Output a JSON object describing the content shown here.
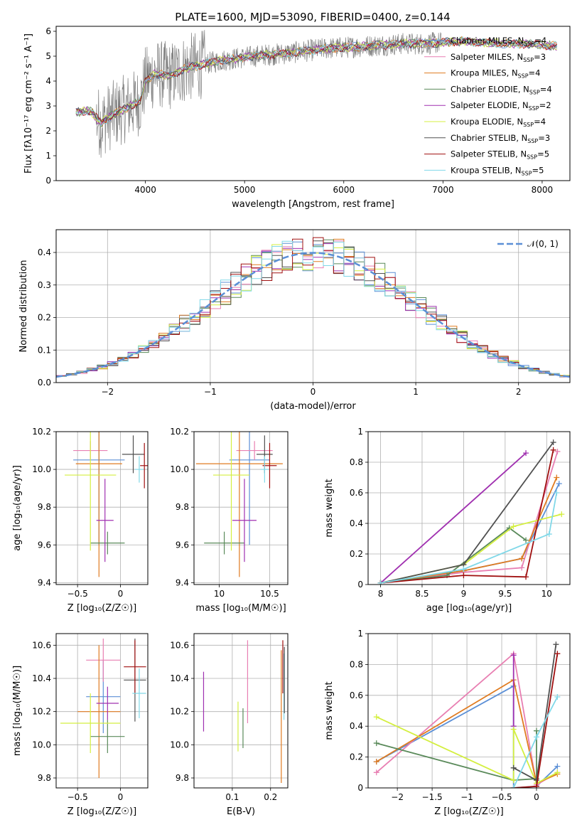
{
  "figure": {
    "title": "PLATE=1600, MJD=53090, FIBERID=0400, z=0.144"
  },
  "legend_spectrum": [
    {
      "name": "Chabrier MILES",
      "nssp": "4",
      "color": "#5b8fd6"
    },
    {
      "name": "Salpeter MILES",
      "nssp": "3",
      "color": "#e87fb2"
    },
    {
      "name": "Kroupa MILES",
      "nssp": "4",
      "color": "#e07b20"
    },
    {
      "name": "Chabrier ELODIE",
      "nssp": "4",
      "color": "#5a8a5a"
    },
    {
      "name": "Salpeter ELODIE",
      "nssp": "2",
      "color": "#a030b0"
    },
    {
      "name": "Kroupa ELODIE",
      "nssp": "4",
      "color": "#d4ef40"
    },
    {
      "name": "Chabrier STELIB",
      "nssp": "3",
      "color": "#505050"
    },
    {
      "name": "Salpeter STELIB",
      "nssp": "5",
      "color": "#a01010"
    },
    {
      "name": "Kroupa STELIB",
      "nssp": "5",
      "color": "#80d8e8"
    }
  ],
  "chart_data": [
    {
      "id": "spectrum",
      "type": "line",
      "xlabel": "wavelength [Angstrom, rest frame]",
      "ylabel": "Flux [fλ10⁻¹⁷ erg cm⁻² s⁻¹ A⁻¹]",
      "xlim": [
        3100,
        8280
      ],
      "ylim": [
        0,
        6.2
      ],
      "xticks": [
        4000,
        5000,
        6000,
        7000,
        8000
      ],
      "yticks": [
        0,
        1,
        2,
        3,
        4,
        5,
        6
      ],
      "grid": false,
      "legend": "right",
      "continuum": {
        "x": [
          3300,
          3450,
          3550,
          3650,
          3750,
          3850,
          3950,
          4000,
          4100,
          4250,
          4400,
          4600,
          4800,
          5000,
          5200,
          5400,
          5600,
          5800,
          6000,
          6200,
          6400,
          6600,
          6800,
          7000,
          7200,
          7400,
          7600,
          7800,
          8000,
          8150
        ],
        "y": [
          2.75,
          2.8,
          2.3,
          2.6,
          2.8,
          3.0,
          3.2,
          4.0,
          4.3,
          4.2,
          4.5,
          4.7,
          4.85,
          4.95,
          5.05,
          5.1,
          5.2,
          5.3,
          5.35,
          5.4,
          5.45,
          5.5,
          5.5,
          5.55,
          5.6,
          5.55,
          5.5,
          5.5,
          5.45,
          5.4
        ]
      },
      "noise_range": [
        3500,
        7000
      ]
    },
    {
      "id": "residuals",
      "type": "bar",
      "xlabel": "(data-model)/error",
      "ylabel": "Normed distribution",
      "xlim": [
        -2.5,
        2.5
      ],
      "ylim": [
        0,
        0.47
      ],
      "xticks": [
        -2,
        -1,
        0,
        1,
        2
      ],
      "yticks": [
        0.0,
        0.1,
        0.2,
        0.3,
        0.4
      ],
      "grid": true,
      "legend": "top-right",
      "reference": {
        "name": "𝒩(0, 1)",
        "mean": 0,
        "sigma": 1,
        "color": "#5b8fd6"
      },
      "bin_width": 0.1
    },
    {
      "id": "Z-age",
      "type": "scatter",
      "xlabel": "Z [log₁₀(Z/Z☉)]",
      "ylabel": "age [log₁₀(age/yr)]",
      "xlim": [
        -0.75,
        0.32
      ],
      "ylim": [
        9.39,
        10.2
      ],
      "xticks": [
        -0.5,
        0.0
      ],
      "yticks": [
        9.4,
        9.6,
        9.8,
        10.0,
        10.2
      ],
      "grid": true,
      "points": [
        {
          "x": -0.25,
          "y": 10.05,
          "dx": 0.3,
          "dy": 0.45,
          "color": "#5b8fd6"
        },
        {
          "x": -0.35,
          "y": 10.1,
          "dx": 0.2,
          "dy": 0.05,
          "color": "#e87fb2"
        },
        {
          "x": -0.25,
          "y": 10.03,
          "dx": 0.27,
          "dy": 0.6,
          "color": "#e07b20"
        },
        {
          "x": -0.15,
          "y": 9.61,
          "dx": 0.2,
          "dy": 0.06,
          "color": "#5a8a5a"
        },
        {
          "x": -0.18,
          "y": 9.73,
          "dx": 0.1,
          "dy": 0.22,
          "color": "#a030b0"
        },
        {
          "x": -0.35,
          "y": 9.97,
          "dx": 0.3,
          "dy": 0.4,
          "color": "#d4ef40"
        },
        {
          "x": 0.15,
          "y": 10.08,
          "dx": 0.13,
          "dy": 0.1,
          "color": "#505050"
        },
        {
          "x": 0.28,
          "y": 10.02,
          "dx": 0.05,
          "dy": 0.12,
          "color": "#a01010"
        },
        {
          "x": 0.22,
          "y": 10.0,
          "dx": 0.05,
          "dy": 0.07,
          "color": "#80d8e8"
        }
      ]
    },
    {
      "id": "mass-age",
      "type": "scatter",
      "xlabel": "mass [log₁₀(M/M☉)]",
      "ylabel": "",
      "xlim": [
        9.75,
        10.68
      ],
      "ylim": [
        9.39,
        10.2
      ],
      "xticks": [
        10.0,
        10.5
      ],
      "yticks": [
        9.4,
        9.6,
        9.8,
        10.0,
        10.2
      ],
      "grid": true,
      "points": [
        {
          "x": 10.3,
          "y": 10.05,
          "dx": 0.2,
          "dy": 0.45,
          "color": "#5b8fd6"
        },
        {
          "x": 10.35,
          "y": 10.1,
          "dx": 0.18,
          "dy": 0.05,
          "color": "#e87fb2"
        },
        {
          "x": 10.2,
          "y": 10.03,
          "dx": 0.43,
          "dy": 0.6,
          "color": "#e07b20"
        },
        {
          "x": 10.05,
          "y": 9.61,
          "dx": 0.2,
          "dy": 0.06,
          "color": "#5a8a5a"
        },
        {
          "x": 10.25,
          "y": 9.73,
          "dx": 0.12,
          "dy": 0.22,
          "color": "#a030b0"
        },
        {
          "x": 10.12,
          "y": 9.97,
          "dx": 0.18,
          "dy": 0.4,
          "color": "#d4ef40"
        },
        {
          "x": 10.45,
          "y": 10.08,
          "dx": 0.08,
          "dy": 0.1,
          "color": "#505050"
        },
        {
          "x": 10.5,
          "y": 10.02,
          "dx": 0.07,
          "dy": 0.12,
          "color": "#a01010"
        },
        {
          "x": 10.45,
          "y": 10.0,
          "dx": 0.04,
          "dy": 0.07,
          "color": "#80d8e8"
        }
      ]
    },
    {
      "id": "age-weight",
      "type": "line",
      "xlabel": "age [log₁₀(age/yr)]",
      "ylabel": "mass weight",
      "xlim": [
        7.85,
        10.28
      ],
      "ylim": [
        0,
        1.0
      ],
      "xticks": [
        8.0,
        8.5,
        9.0,
        9.5,
        10.0
      ],
      "yticks": [
        0.0,
        0.2,
        0.4,
        0.6,
        0.8,
        1.0
      ],
      "grid": true,
      "series": [
        {
          "color": "#5b8fd6",
          "x": [
            8.0,
            9.0,
            9.7,
            10.15
          ],
          "y": [
            0.01,
            0.09,
            0.17,
            0.66
          ]
        },
        {
          "color": "#e87fb2",
          "x": [
            8.0,
            9.0,
            9.7,
            10.13
          ],
          "y": [
            0.01,
            0.08,
            0.11,
            0.87
          ]
        },
        {
          "color": "#e07b20",
          "x": [
            8.0,
            9.0,
            9.7,
            10.12
          ],
          "y": [
            0.01,
            0.09,
            0.17,
            0.7
          ]
        },
        {
          "color": "#5a8a5a",
          "x": [
            8.0,
            8.8,
            9.55,
            9.75
          ],
          "y": [
            0.01,
            0.06,
            0.37,
            0.29
          ]
        },
        {
          "color": "#a030b0",
          "x": [
            8.0,
            9.75
          ],
          "y": [
            0.01,
            0.86
          ]
        },
        {
          "color": "#d4ef40",
          "x": [
            8.0,
            9.0,
            9.6,
            10.18
          ],
          "y": [
            0.01,
            0.13,
            0.38,
            0.46
          ]
        },
        {
          "color": "#505050",
          "x": [
            8.0,
            9.0,
            10.08
          ],
          "y": [
            0.01,
            0.13,
            0.93
          ]
        },
        {
          "color": "#a01010",
          "x": [
            8.0,
            9.0,
            9.75,
            10.08
          ],
          "y": [
            0.01,
            0.06,
            0.05,
            0.88
          ]
        },
        {
          "color": "#80d8e8",
          "x": [
            8.0,
            9.0,
            10.03,
            10.12
          ],
          "y": [
            0.01,
            0.1,
            0.33,
            0.6
          ]
        }
      ]
    },
    {
      "id": "Z-mass",
      "type": "scatter",
      "xlabel": "Z [log₁₀(Z/Z☉)]",
      "ylabel": "mass [log₁₀(M/M☉)]",
      "xlim": [
        -0.75,
        0.32
      ],
      "ylim": [
        9.74,
        10.67
      ],
      "xticks": [
        -0.5,
        0.0
      ],
      "yticks": [
        9.8,
        10.0,
        10.2,
        10.4,
        10.6
      ],
      "grid": true,
      "points": [
        {
          "x": -0.2,
          "y": 10.29,
          "dx": 0.2,
          "dy": 0.22,
          "color": "#5b8fd6"
        },
        {
          "x": -0.2,
          "y": 10.51,
          "dx": 0.2,
          "dy": 0.13,
          "color": "#e87fb2"
        },
        {
          "x": -0.25,
          "y": 10.2,
          "dx": 0.25,
          "dy": 0.4,
          "color": "#e07b20"
        },
        {
          "x": -0.15,
          "y": 10.05,
          "dx": 0.2,
          "dy": 0.1,
          "color": "#5a8a5a"
        },
        {
          "x": -0.15,
          "y": 10.25,
          "dx": 0.13,
          "dy": 0.1,
          "color": "#a030b0"
        },
        {
          "x": -0.35,
          "y": 10.13,
          "dx": 0.35,
          "dy": 0.18,
          "color": "#d4ef40"
        },
        {
          "x": 0.17,
          "y": 10.39,
          "dx": 0.13,
          "dy": 0.25,
          "color": "#505050"
        },
        {
          "x": 0.17,
          "y": 10.47,
          "dx": 0.13,
          "dy": 0.16,
          "color": "#a01010"
        },
        {
          "x": 0.22,
          "y": 10.31,
          "dx": 0.08,
          "dy": 0.15,
          "color": "#80d8e8"
        }
      ]
    },
    {
      "id": "ebv-mass",
      "type": "scatter",
      "xlabel": "E(B-V)",
      "ylabel": "",
      "xlim": [
        0.0,
        0.245
      ],
      "ylim": [
        9.74,
        10.67
      ],
      "xticks": [
        0.1,
        0.2
      ],
      "yticks": [
        9.8,
        10.0,
        10.2,
        10.4,
        10.6
      ],
      "grid": true,
      "points": [
        {
          "x": 0.025,
          "y": 10.26,
          "dy": 0.18,
          "color": "#a030b0"
        },
        {
          "x": 0.115,
          "y": 10.11,
          "dy": 0.15,
          "color": "#d4ef40"
        },
        {
          "x": 0.128,
          "y": 10.1,
          "dy": 0.12,
          "color": "#5a8a5a"
        },
        {
          "x": 0.14,
          "y": 10.38,
          "dy": 0.25,
          "color": "#e87fb2"
        },
        {
          "x": 0.228,
          "y": 10.17,
          "dy": 0.4,
          "color": "#e07b20"
        },
        {
          "x": 0.232,
          "y": 10.47,
          "dy": 0.16,
          "color": "#a01010"
        },
        {
          "x": 0.235,
          "y": 10.35,
          "dy": 0.2,
          "color": "#80d8e8"
        },
        {
          "x": 0.236,
          "y": 10.39,
          "dy": 0.2,
          "color": "#505050"
        }
      ]
    },
    {
      "id": "Z-weight",
      "type": "line",
      "xlabel": "Z [log₁₀(Z/Z☉)]",
      "ylabel": "mass weight",
      "xlim": [
        -2.42,
        0.48
      ],
      "ylim": [
        0,
        1.0
      ],
      "xticks": [
        -2.0,
        -1.5,
        -1.0,
        -0.5,
        0.0
      ],
      "yticks": [
        0.0,
        0.2,
        0.4,
        0.6,
        0.8,
        1.0
      ],
      "grid": true,
      "series": [
        {
          "color": "#5b8fd6",
          "x": [
            -2.3,
            -0.33,
            -0.33,
            0.0,
            0.3
          ],
          "y": [
            0.17,
            0.66,
            0.0,
            0.01,
            0.14
          ]
        },
        {
          "color": "#e87fb2",
          "x": [
            -2.3,
            -0.33,
            0.0,
            0.3
          ],
          "y": [
            0.1,
            0.87,
            0.02,
            0.1
          ]
        },
        {
          "color": "#e07b20",
          "x": [
            -2.3,
            -0.33,
            0.0,
            0.3
          ],
          "y": [
            0.17,
            0.7,
            0.03,
            0.09
          ]
        },
        {
          "color": "#5a8a5a",
          "x": [
            -2.3,
            -0.33,
            0.0,
            0.0
          ],
          "y": [
            0.29,
            0.05,
            0.06,
            0.37
          ]
        },
        {
          "color": "#a030b0",
          "x": [
            -0.33,
            -0.33
          ],
          "y": [
            0.86,
            0.4
          ]
        },
        {
          "color": "#d4ef40",
          "x": [
            -2.3,
            -0.33,
            -0.33,
            0.0,
            0.3
          ],
          "y": [
            0.46,
            0.05,
            0.38,
            0.03,
            0.1
          ]
        },
        {
          "color": "#505050",
          "x": [
            -0.33,
            0.0,
            0.28
          ],
          "y": [
            0.13,
            0.05,
            0.93
          ]
        },
        {
          "color": "#a01010",
          "x": [
            -0.33,
            0.0,
            0.3
          ],
          "y": [
            0.0,
            0.01,
            0.87
          ]
        },
        {
          "color": "#80d8e8",
          "x": [
            -0.33,
            0.0,
            0.3
          ],
          "y": [
            0.0,
            0.33,
            0.59
          ]
        }
      ]
    }
  ]
}
